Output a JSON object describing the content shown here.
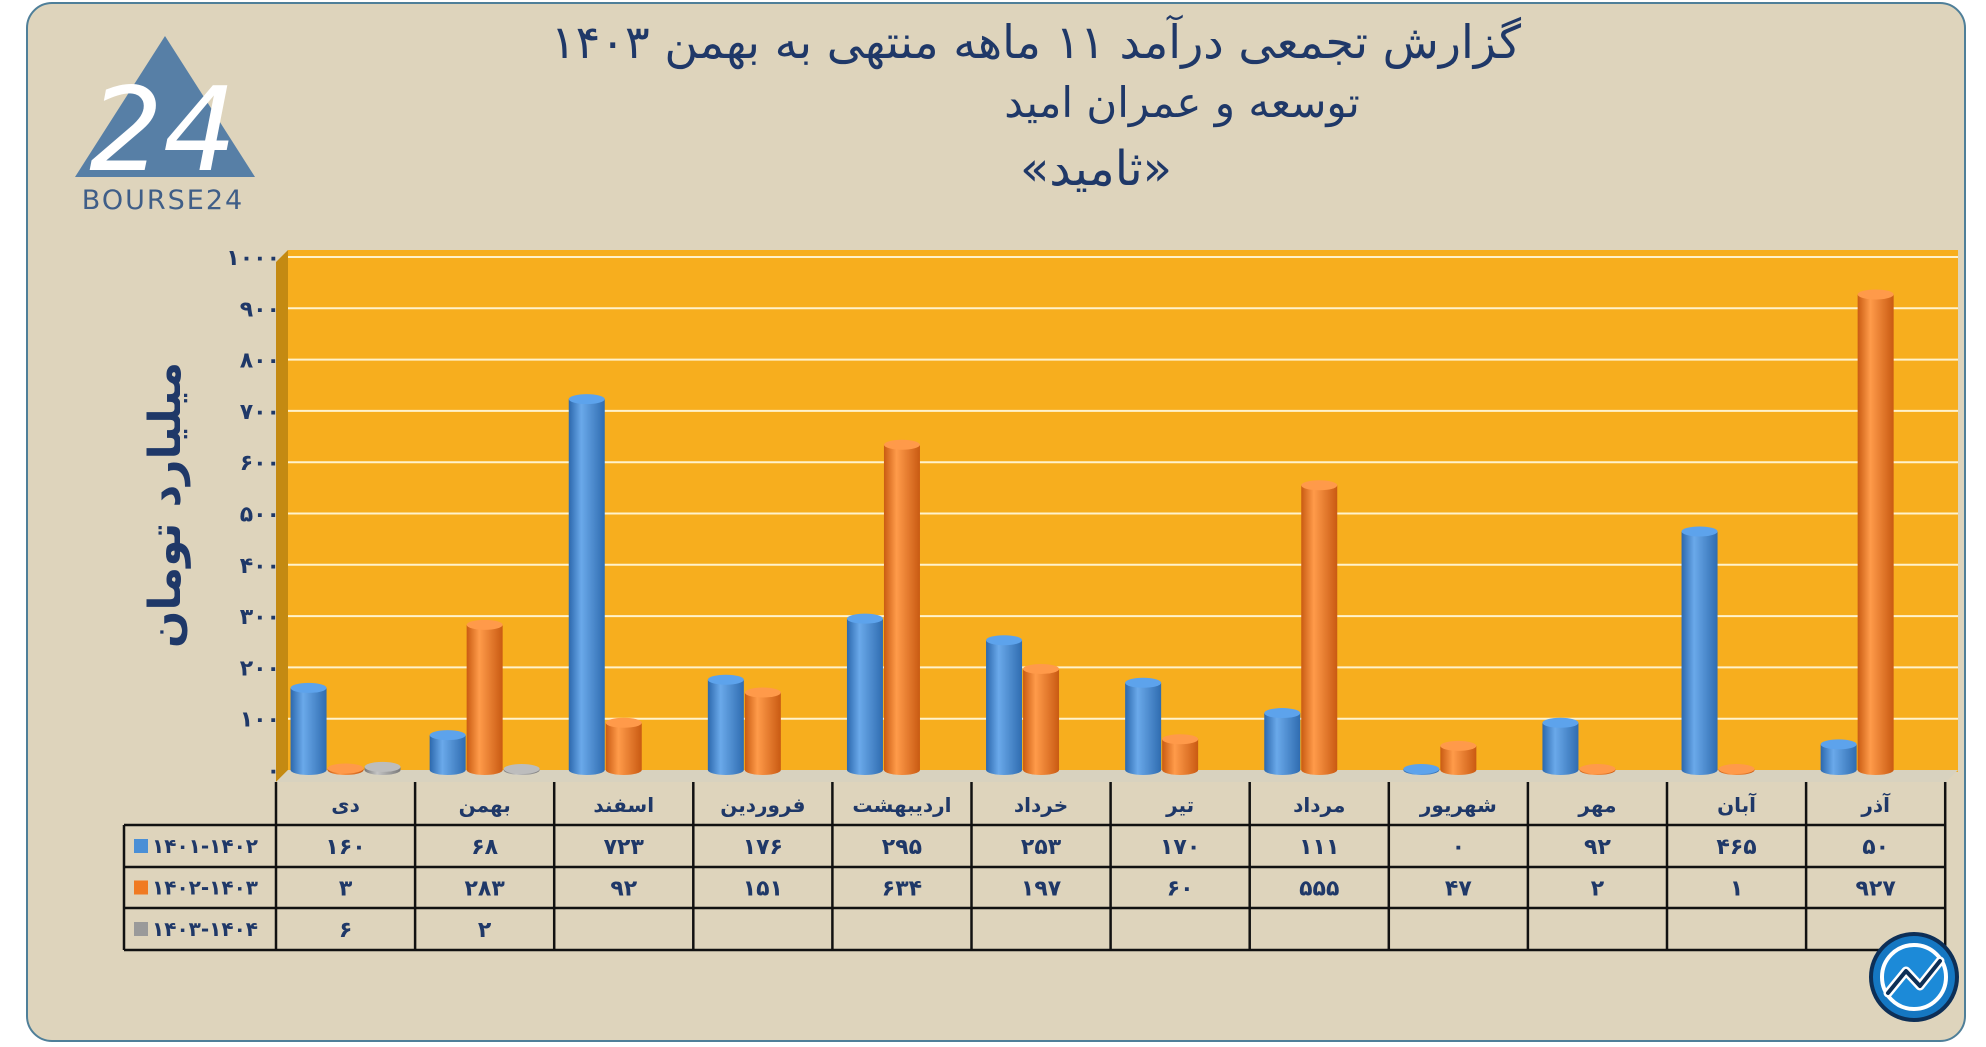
{
  "title": {
    "line1": "گزارش تجمعی درآمد ۱۱ ماهه منتهی به بهمن ۱۴۰۳",
    "line2": "توسعه و عمران امید",
    "line3": "«ثامید»"
  },
  "logo": {
    "brand_text": "BOURSE24",
    "mark_text": "24"
  },
  "colors": {
    "plot_bg": "#f7ae1e",
    "frame_bg": "#ded4bc",
    "text": "#1f3868",
    "series": [
      "#4a8fd6",
      "#f07a22",
      "#9a9a9a"
    ]
  },
  "chart_data": {
    "type": "bar",
    "ylabel": "میلیارد تومان",
    "ylim": [
      0,
      1000
    ],
    "yticks": [
      0,
      100,
      200,
      300,
      400,
      500,
      600,
      700,
      800,
      900,
      1000
    ],
    "ytick_labels": [
      "۰",
      "۱۰۰",
      "۲۰۰",
      "۳۰۰",
      "۴۰۰",
      "۵۰۰",
      "۶۰۰",
      "۷۰۰",
      "۸۰۰",
      "۹۰۰",
      "۱۰۰۰"
    ],
    "grid": true,
    "categories": [
      "دی",
      "بهمن",
      "اسفند",
      "فروردین",
      "اردیبهشت",
      "خرداد",
      "تیر",
      "مرداد",
      "شهریور",
      "مهر",
      "آبان",
      "آذر"
    ],
    "series": [
      {
        "name": "۱۴۰۱-۱۴۰۲",
        "values": [
          160,
          68,
          723,
          176,
          295,
          253,
          170,
          111,
          0,
          92,
          465,
          50
        ],
        "labels": [
          "۱۶۰",
          "۶۸",
          "۷۲۳",
          "۱۷۶",
          "۲۹۵",
          "۲۵۳",
          "۱۷۰",
          "۱۱۱",
          "۰",
          "۹۲",
          "۴۶۵",
          "۵۰"
        ]
      },
      {
        "name": "۱۴۰۲-۱۴۰۳",
        "values": [
          3,
          283,
          92,
          151,
          634,
          197,
          60,
          555,
          47,
          2,
          1,
          927
        ],
        "labels": [
          "۳",
          "۲۸۳",
          "۹۲",
          "۱۵۱",
          "۶۳۴",
          "۱۹۷",
          "۶۰",
          "۵۵۵",
          "۴۷",
          "۲",
          "۱",
          "۹۲۷"
        ]
      },
      {
        "name": "۱۴۰۳-۱۴۰۴",
        "values": [
          6,
          2,
          null,
          null,
          null,
          null,
          null,
          null,
          null,
          null,
          null,
          null
        ],
        "labels": [
          "۶",
          "۲",
          "",
          "",
          "",
          "",
          "",
          "",
          "",
          "",
          "",
          ""
        ]
      }
    ]
  }
}
